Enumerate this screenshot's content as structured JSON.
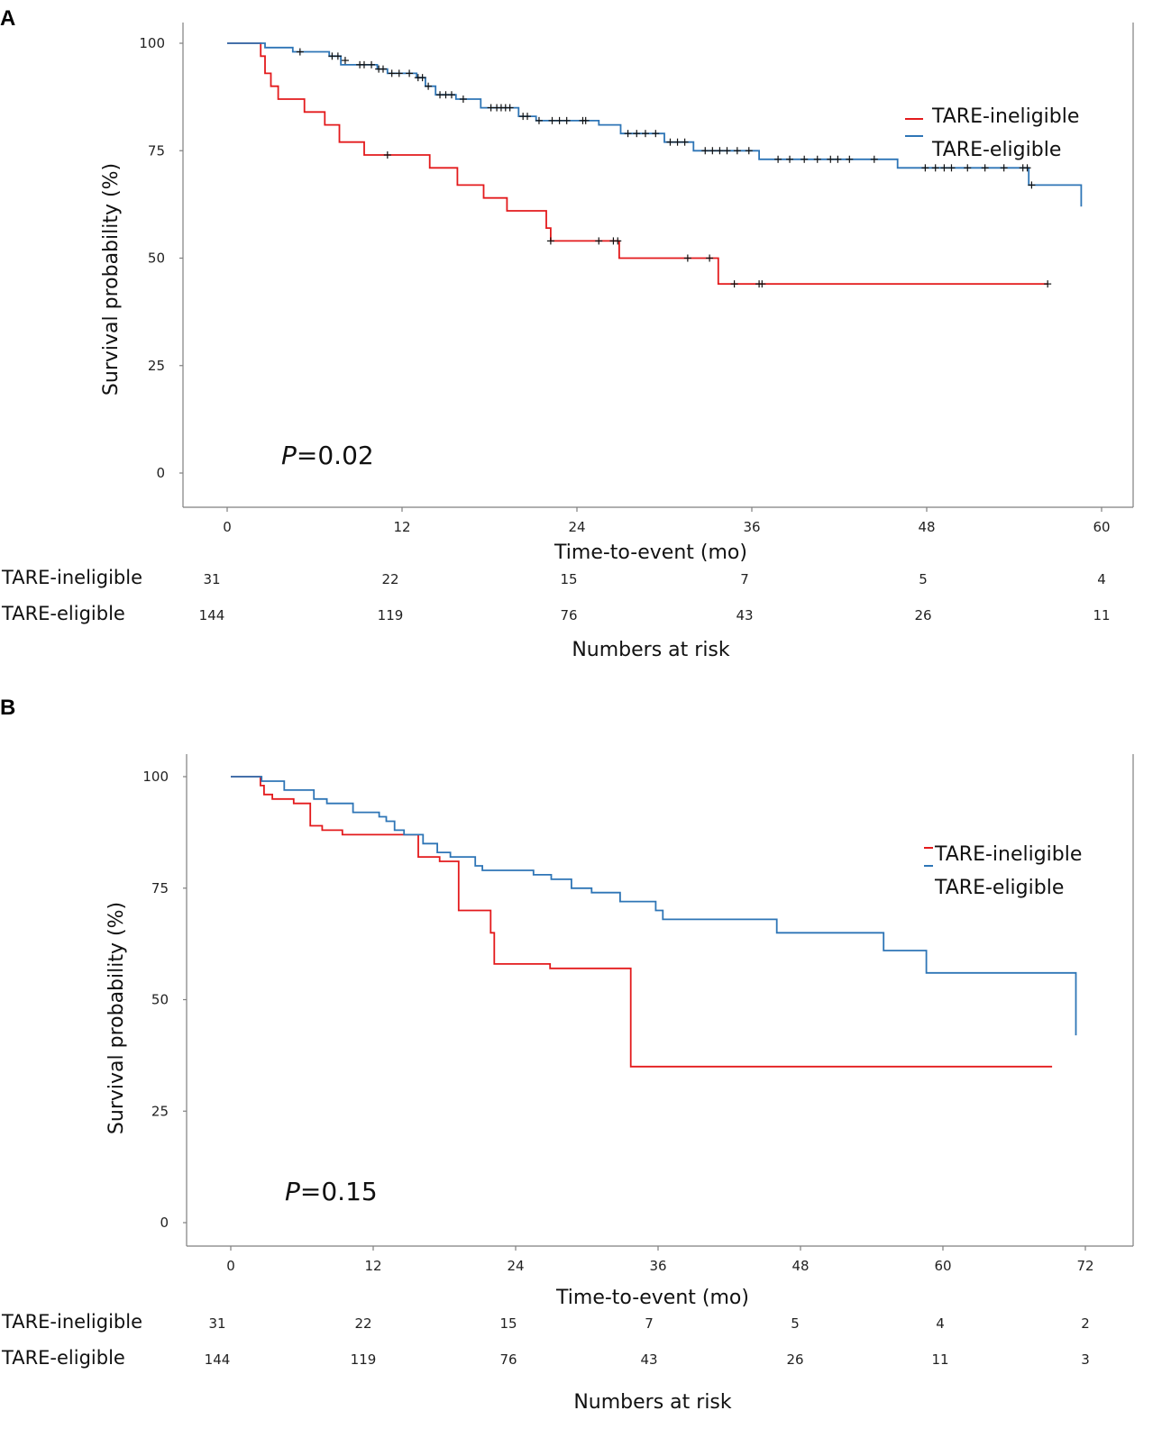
{
  "chart_data": [
    {
      "type": "line",
      "panel_label": "A",
      "ylabel": "Survival probability (%)",
      "xlabel": "Time-to-event (mo)",
      "yticks": [
        0,
        25,
        50,
        75,
        100
      ],
      "xticks": [
        0,
        12,
        24,
        36,
        48,
        60
      ],
      "xlim": [
        -3,
        63
      ],
      "ylim": [
        -3,
        105
      ],
      "p_value": {
        "label": "P",
        "text": "=0.02"
      },
      "legend_position": "top-right",
      "series": [
        {
          "name": "TARE-ineligible",
          "color": "#e31a1c",
          "points": [
            [
              0,
              100
            ],
            [
              2.3,
              100
            ],
            [
              2.3,
              97
            ],
            [
              2.6,
              97
            ],
            [
              2.6,
              93
            ],
            [
              3.0,
              93
            ],
            [
              3.0,
              90
            ],
            [
              3.5,
              90
            ],
            [
              3.5,
              87
            ],
            [
              5.3,
              87
            ],
            [
              5.3,
              84
            ],
            [
              6.7,
              84
            ],
            [
              6.7,
              81
            ],
            [
              7.7,
              81
            ],
            [
              7.7,
              77
            ],
            [
              9.4,
              77
            ],
            [
              9.4,
              74
            ],
            [
              13.9,
              74
            ],
            [
              13.9,
              71
            ],
            [
              15.8,
              71
            ],
            [
              15.8,
              67
            ],
            [
              17.6,
              67
            ],
            [
              17.6,
              64
            ],
            [
              19.2,
              64
            ],
            [
              19.2,
              61
            ],
            [
              21.9,
              61
            ],
            [
              21.9,
              57
            ],
            [
              22.2,
              57
            ],
            [
              22.2,
              54
            ],
            [
              26.9,
              54
            ],
            [
              26.9,
              50
            ],
            [
              33.7,
              50
            ],
            [
              33.7,
              44
            ],
            [
              56.3,
              44
            ]
          ],
          "censored": [
            [
              11,
              74
            ],
            [
              22.2,
              54
            ],
            [
              25.5,
              54
            ],
            [
              26.5,
              54
            ],
            [
              26.8,
              54
            ],
            [
              31.6,
              50
            ],
            [
              33.1,
              50
            ],
            [
              34.8,
              44
            ],
            [
              36.5,
              44
            ],
            [
              36.7,
              44
            ],
            [
              56.3,
              44
            ]
          ]
        },
        {
          "name": "TARE-eligible",
          "color": "#2e75b6",
          "points": [
            [
              0,
              100
            ],
            [
              2.6,
              100
            ],
            [
              2.6,
              99
            ],
            [
              4.5,
              99
            ],
            [
              4.5,
              98
            ],
            [
              7.0,
              98
            ],
            [
              7.0,
              97
            ],
            [
              7.8,
              97
            ],
            [
              7.8,
              95
            ],
            [
              10.3,
              95
            ],
            [
              10.3,
              94
            ],
            [
              11.0,
              94
            ],
            [
              11.0,
              93
            ],
            [
              13.0,
              93
            ],
            [
              13.0,
              92
            ],
            [
              13.6,
              92
            ],
            [
              13.6,
              90
            ],
            [
              14.3,
              90
            ],
            [
              14.3,
              88
            ],
            [
              15.7,
              88
            ],
            [
              15.7,
              87
            ],
            [
              17.4,
              87
            ],
            [
              17.4,
              85
            ],
            [
              20.0,
              85
            ],
            [
              20.0,
              83
            ],
            [
              21.2,
              83
            ],
            [
              21.2,
              82
            ],
            [
              25.5,
              82
            ],
            [
              25.5,
              81
            ],
            [
              27.0,
              81
            ],
            [
              27.0,
              79
            ],
            [
              30.0,
              79
            ],
            [
              30.0,
              77
            ],
            [
              32.0,
              77
            ],
            [
              32.0,
              75
            ],
            [
              36.5,
              75
            ],
            [
              36.5,
              73
            ],
            [
              46.0,
              73
            ],
            [
              46.0,
              71
            ],
            [
              55.0,
              71
            ],
            [
              55.0,
              67
            ],
            [
              58.6,
              67
            ],
            [
              58.6,
              62
            ]
          ],
          "censored": [
            [
              5.0,
              98
            ],
            [
              7.2,
              97
            ],
            [
              7.6,
              97
            ],
            [
              8.1,
              96
            ],
            [
              9.1,
              95
            ],
            [
              9.4,
              95
            ],
            [
              9.9,
              95
            ],
            [
              10.4,
              94
            ],
            [
              10.7,
              94
            ],
            [
              11.3,
              93
            ],
            [
              11.8,
              93
            ],
            [
              12.5,
              93
            ],
            [
              13.1,
              92
            ],
            [
              13.4,
              92
            ],
            [
              13.8,
              90
            ],
            [
              14.6,
              88
            ],
            [
              15.0,
              88
            ],
            [
              15.4,
              88
            ],
            [
              16.2,
              87
            ],
            [
              18.1,
              85
            ],
            [
              18.5,
              85
            ],
            [
              18.8,
              85
            ],
            [
              19.1,
              85
            ],
            [
              19.4,
              85
            ],
            [
              20.3,
              83
            ],
            [
              20.6,
              83
            ],
            [
              21.4,
              82
            ],
            [
              22.3,
              82
            ],
            [
              22.8,
              82
            ],
            [
              23.3,
              82
            ],
            [
              24.4,
              82
            ],
            [
              24.6,
              82
            ],
            [
              27.5,
              79
            ],
            [
              28.1,
              79
            ],
            [
              28.7,
              79
            ],
            [
              29.4,
              79
            ],
            [
              30.4,
              77
            ],
            [
              30.9,
              77
            ],
            [
              31.4,
              77
            ],
            [
              32.8,
              75
            ],
            [
              33.3,
              75
            ],
            [
              33.8,
              75
            ],
            [
              34.3,
              75
            ],
            [
              35.0,
              75
            ],
            [
              35.8,
              75
            ],
            [
              37.8,
              73
            ],
            [
              38.6,
              73
            ],
            [
              39.6,
              73
            ],
            [
              40.5,
              73
            ],
            [
              41.4,
              73
            ],
            [
              41.9,
              73
            ],
            [
              42.7,
              73
            ],
            [
              44.4,
              73
            ],
            [
              47.9,
              71
            ],
            [
              48.6,
              71
            ],
            [
              49.2,
              71
            ],
            [
              49.7,
              71
            ],
            [
              50.8,
              71
            ],
            [
              52.0,
              71
            ],
            [
              53.3,
              71
            ],
            [
              54.6,
              71
            ],
            [
              54.9,
              71
            ],
            [
              55.2,
              67
            ]
          ]
        }
      ],
      "numbers_at_risk": {
        "title": "Numbers at risk",
        "rows": [
          {
            "name": "TARE-ineligible",
            "values": [
              "31",
              "22",
              "15",
              "7",
              "5",
              "4"
            ]
          },
          {
            "name": "TARE-eligible",
            "values": [
              "144",
              "119",
              "76",
              "43",
              "26",
              "11"
            ]
          }
        ]
      }
    },
    {
      "type": "line",
      "panel_label": "B",
      "ylabel": "Survival probability (%)",
      "xlabel": "Time-to-event (mo)",
      "yticks": [
        0,
        25,
        50,
        75,
        100
      ],
      "xticks": [
        0,
        12,
        24,
        36,
        48,
        60,
        72
      ],
      "xlim": [
        -3.5,
        75.5
      ],
      "ylim": [
        -3,
        105
      ],
      "p_value": {
        "label": "P",
        "text": "=0.15"
      },
      "legend_position": "top-right",
      "series": [
        {
          "name": "TARE-ineligible",
          "color": "#e31a1c",
          "points": [
            [
              0,
              100
            ],
            [
              2.5,
              100
            ],
            [
              2.5,
              98
            ],
            [
              2.8,
              98
            ],
            [
              2.8,
              96
            ],
            [
              3.5,
              96
            ],
            [
              3.5,
              95
            ],
            [
              5.3,
              95
            ],
            [
              5.3,
              94
            ],
            [
              6.7,
              94
            ],
            [
              6.7,
              89
            ],
            [
              7.7,
              89
            ],
            [
              7.7,
              88
            ],
            [
              9.4,
              88
            ],
            [
              9.4,
              87
            ],
            [
              15.8,
              87
            ],
            [
              15.8,
              82
            ],
            [
              17.6,
              82
            ],
            [
              17.6,
              81
            ],
            [
              19.2,
              81
            ],
            [
              19.2,
              70
            ],
            [
              21.9,
              70
            ],
            [
              21.9,
              65
            ],
            [
              22.2,
              65
            ],
            [
              22.2,
              58
            ],
            [
              26.9,
              58
            ],
            [
              26.9,
              57
            ],
            [
              33.7,
              57
            ],
            [
              33.7,
              35
            ],
            [
              69.2,
              35
            ]
          ],
          "censored": []
        },
        {
          "name": "TARE-eligible",
          "color": "#2e75b6",
          "points": [
            [
              0,
              100
            ],
            [
              2.6,
              100
            ],
            [
              2.6,
              99
            ],
            [
              4.5,
              99
            ],
            [
              4.5,
              97
            ],
            [
              7.0,
              97
            ],
            [
              7.0,
              95
            ],
            [
              8.1,
              95
            ],
            [
              8.1,
              94
            ],
            [
              10.3,
              94
            ],
            [
              10.3,
              92
            ],
            [
              12.5,
              92
            ],
            [
              12.5,
              91
            ],
            [
              13.1,
              91
            ],
            [
              13.1,
              90
            ],
            [
              13.8,
              90
            ],
            [
              13.8,
              88
            ],
            [
              14.6,
              88
            ],
            [
              14.6,
              87
            ],
            [
              16.2,
              87
            ],
            [
              16.2,
              85
            ],
            [
              17.4,
              85
            ],
            [
              17.4,
              83
            ],
            [
              18.5,
              83
            ],
            [
              18.5,
              82
            ],
            [
              20.6,
              82
            ],
            [
              20.6,
              80
            ],
            [
              21.2,
              80
            ],
            [
              21.2,
              79
            ],
            [
              25.5,
              79
            ],
            [
              25.5,
              78
            ],
            [
              27.0,
              78
            ],
            [
              27.0,
              77
            ],
            [
              28.7,
              77
            ],
            [
              28.7,
              75
            ],
            [
              30.4,
              75
            ],
            [
              30.4,
              74
            ],
            [
              32.8,
              74
            ],
            [
              32.8,
              72
            ],
            [
              35.8,
              72
            ],
            [
              35.8,
              70
            ],
            [
              36.4,
              70
            ],
            [
              36.4,
              68
            ],
            [
              46.0,
              68
            ],
            [
              46.0,
              65
            ],
            [
              55.0,
              65
            ],
            [
              55.0,
              61
            ],
            [
              58.6,
              61
            ],
            [
              58.6,
              56
            ],
            [
              71.2,
              56
            ],
            [
              71.2,
              42
            ]
          ],
          "censored": []
        }
      ],
      "numbers_at_risk": {
        "title": "Numbers at risk",
        "rows": [
          {
            "name": "TARE-ineligible",
            "values": [
              "31",
              "22",
              "15",
              "7",
              "5",
              "4",
              "2"
            ]
          },
          {
            "name": "TARE-eligible",
            "values": [
              "144",
              "119",
              "76",
              "43",
              "26",
              "11",
              "3"
            ]
          }
        ]
      }
    }
  ]
}
